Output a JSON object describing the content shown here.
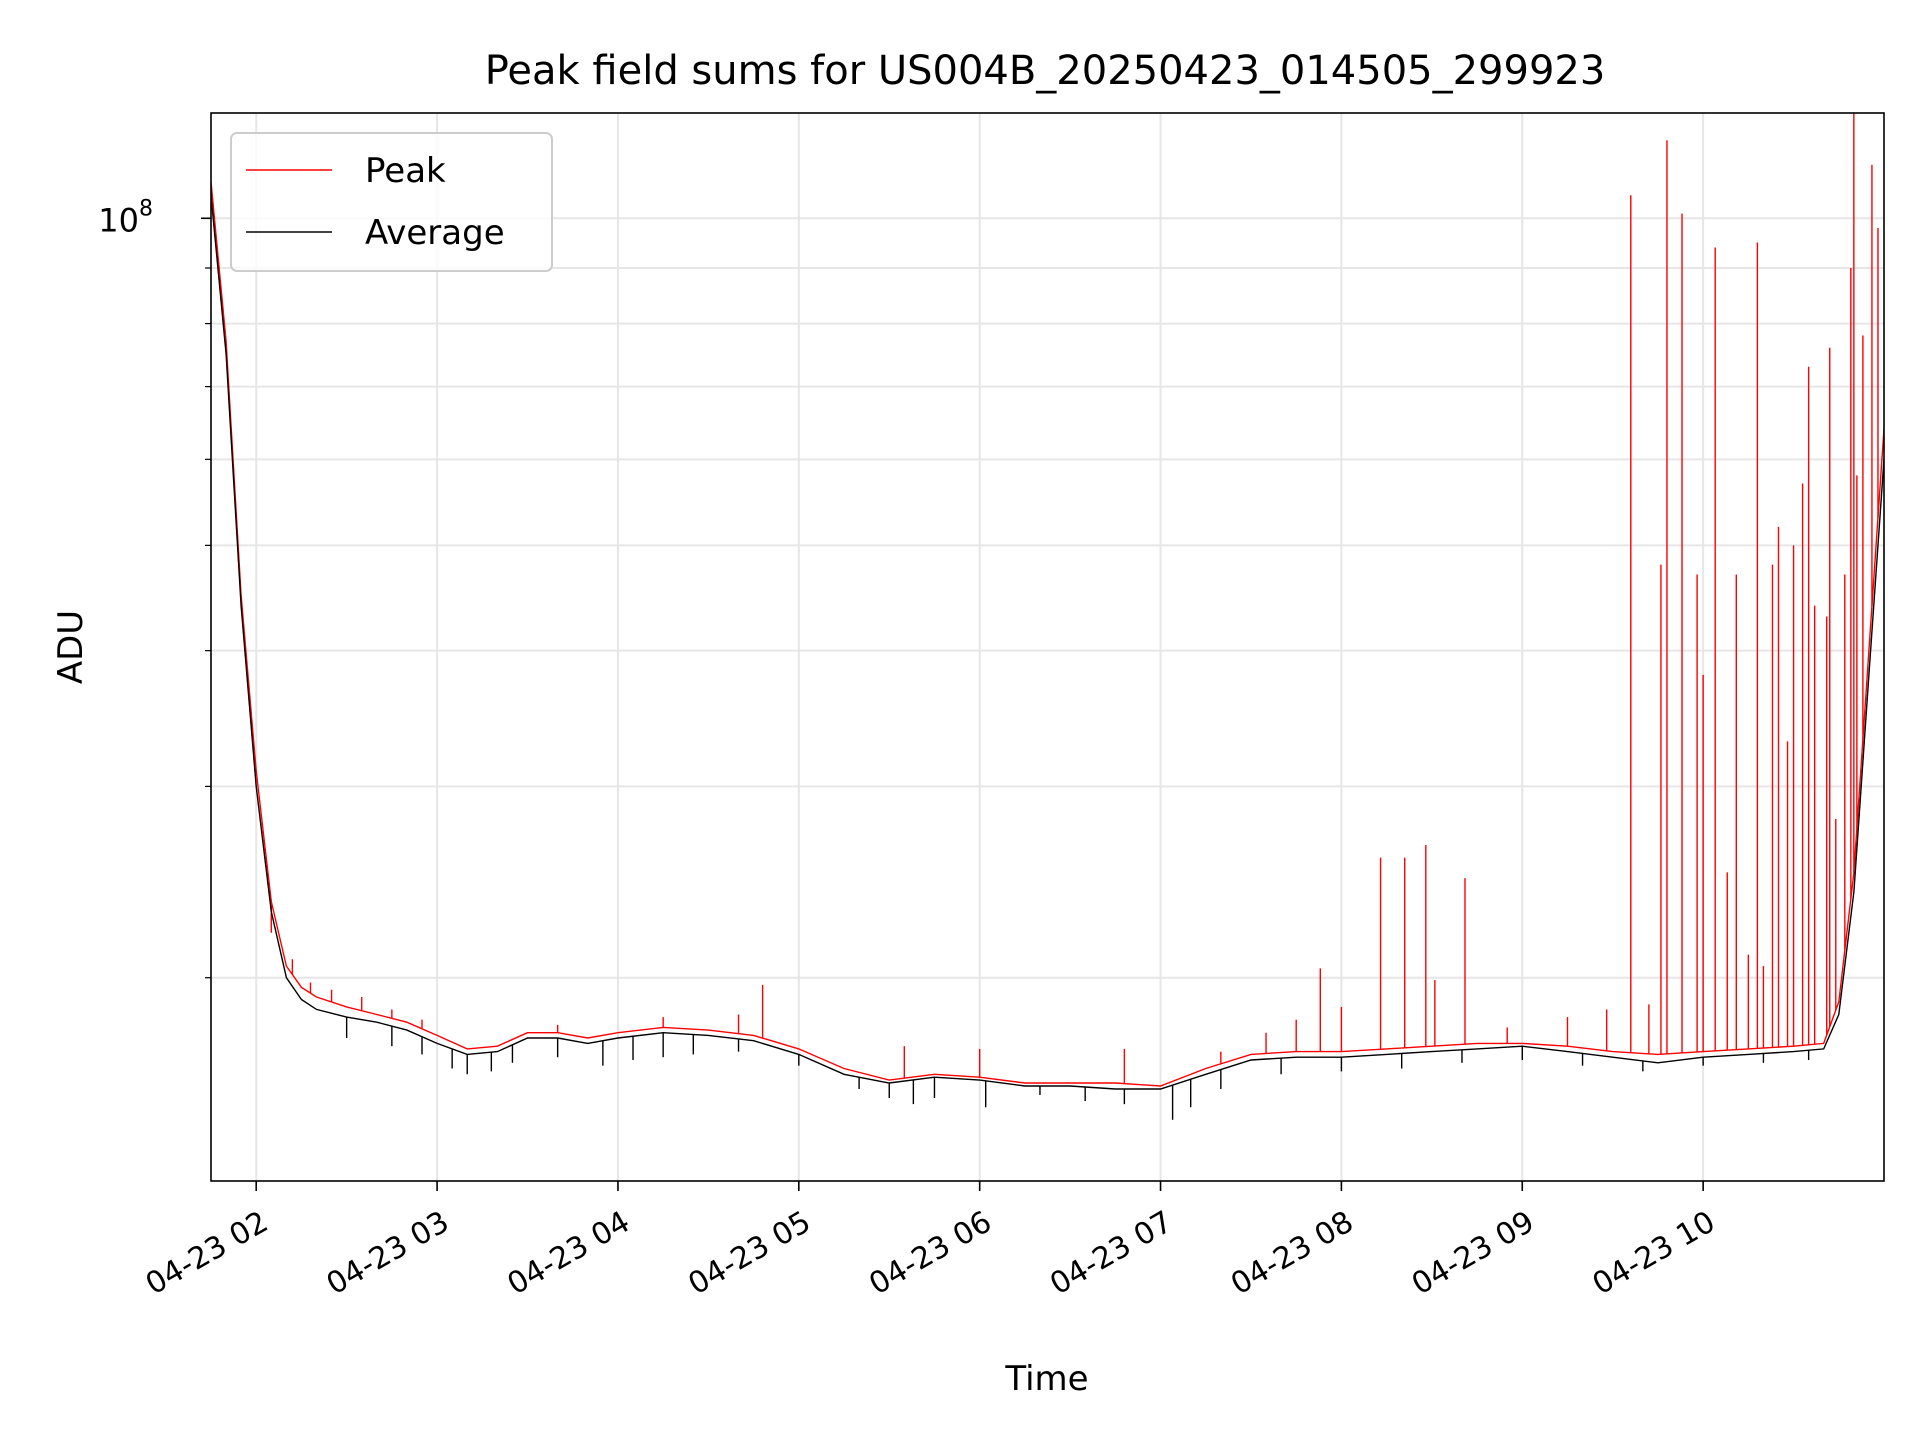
{
  "chart_data": {
    "type": "line",
    "title": "Peak field sums for US004B_20250423_014505_299923",
    "xlabel": "Time",
    "ylabel": "ADU",
    "y_scale": "log",
    "ylim": [
      13000000,
      125000000
    ],
    "x_domain": [
      "04-23 01:45",
      "04-23 11:00"
    ],
    "x_ticks": [
      "04-23 02",
      "04-23 03",
      "04-23 04",
      "04-23 05",
      "04-23 06",
      "04-23 07",
      "04-23 08",
      "04-23 09",
      "04-23 10"
    ],
    "y_major_ticks": [
      {
        "value": 100000000,
        "base": "10",
        "exp": "8"
      }
    ],
    "y_minor_ticks": [
      20000000,
      30000000,
      40000000,
      50000000,
      60000000,
      70000000,
      80000000,
      90000000
    ],
    "grid": true,
    "legend": "upper-left",
    "colors": {
      "peak": "#ff0000",
      "average": "#000000"
    },
    "series": [
      {
        "name": "Average",
        "x": [
          "04-23 01:45",
          "04-23 01:50",
          "04-23 01:55",
          "04-23 02:00",
          "04-23 02:05",
          "04-23 02:10",
          "04-23 02:15",
          "04-23 02:20",
          "04-23 02:30",
          "04-23 02:40",
          "04-23 02:50",
          "04-23 03:00",
          "04-23 03:10",
          "04-23 03:20",
          "04-23 03:30",
          "04-23 03:40",
          "04-23 03:50",
          "04-23 04:00",
          "04-23 04:15",
          "04-23 04:30",
          "04-23 04:45",
          "04-23 05:00",
          "04-23 05:15",
          "04-23 05:30",
          "04-23 05:45",
          "04-23 06:00",
          "04-23 06:15",
          "04-23 06:30",
          "04-23 06:45",
          "04-23 07:00",
          "04-23 07:15",
          "04-23 07:30",
          "04-23 07:45",
          "04-23 08:00",
          "04-23 08:15",
          "04-23 08:30",
          "04-23 08:45",
          "04-23 09:00",
          "04-23 09:15",
          "04-23 09:30",
          "04-23 09:45",
          "04-23 10:00",
          "04-23 10:15",
          "04-23 10:30",
          "04-23 10:40",
          "04-23 10:45",
          "04-23 10:50",
          "04-23 10:55",
          "04-23 11:00"
        ],
        "y": [
          105000000,
          75000000,
          44000000,
          30000000,
          23000000,
          20000000,
          19100000,
          18700000,
          18400000,
          18200000,
          17900000,
          17400000,
          17000000,
          17100000,
          17600000,
          17600000,
          17400000,
          17600000,
          17800000,
          17700000,
          17500000,
          17000000,
          16300000,
          16000000,
          16200000,
          16100000,
          15900000,
          15900000,
          15800000,
          15800000,
          16300000,
          16800000,
          16900000,
          16900000,
          17000000,
          17100000,
          17200000,
          17300000,
          17100000,
          16900000,
          16700000,
          16900000,
          17000000,
          17100000,
          17200000,
          18500000,
          24000000,
          38000000,
          60000000
        ]
      },
      {
        "name": "Peak",
        "x": [
          "04-23 01:45",
          "04-23 01:50",
          "04-23 01:55",
          "04-23 02:00",
          "04-23 02:05",
          "04-23 02:10",
          "04-23 02:15",
          "04-23 02:20",
          "04-23 02:30",
          "04-23 02:40",
          "04-23 02:50",
          "04-23 03:00",
          "04-23 03:10",
          "04-23 03:20",
          "04-23 03:30",
          "04-23 03:40",
          "04-23 03:50",
          "04-23 04:00",
          "04-23 04:15",
          "04-23 04:30",
          "04-23 04:45",
          "04-23 05:00",
          "04-23 05:15",
          "04-23 05:30",
          "04-23 05:45",
          "04-23 06:00",
          "04-23 06:15",
          "04-23 06:30",
          "04-23 06:45",
          "04-23 07:00",
          "04-23 07:15",
          "04-23 07:30",
          "04-23 07:45",
          "04-23 08:00",
          "04-23 08:15",
          "04-23 08:30",
          "04-23 08:45",
          "04-23 09:00",
          "04-23 09:15",
          "04-23 09:30",
          "04-23 09:45",
          "04-23 10:00",
          "04-23 10:15",
          "04-23 10:30",
          "04-23 10:40",
          "04-23 10:45",
          "04-23 10:50",
          "04-23 10:55",
          "04-23 11:00"
        ],
        "y": [
          108000000,
          77000000,
          45000000,
          31000000,
          23500000,
          20500000,
          19600000,
          19200000,
          18800000,
          18500000,
          18200000,
          17700000,
          17200000,
          17300000,
          17800000,
          17800000,
          17600000,
          17800000,
          18000000,
          17900000,
          17700000,
          17200000,
          16500000,
          16100000,
          16300000,
          16200000,
          16000000,
          16000000,
          16000000,
          15900000,
          16500000,
          17000000,
          17100000,
          17100000,
          17200000,
          17300000,
          17400000,
          17400000,
          17300000,
          17100000,
          17000000,
          17100000,
          17200000,
          17300000,
          17400000,
          19000000,
          25000000,
          40000000,
          64000000
        ]
      }
    ],
    "peak_spikes": [
      {
        "x": "04-23 02:05",
        "y": 22000000
      },
      {
        "x": "04-23 02:12",
        "y": 20800000
      },
      {
        "x": "04-23 02:18",
        "y": 19800000
      },
      {
        "x": "04-23 02:25",
        "y": 19500000
      },
      {
        "x": "04-23 02:35",
        "y": 19200000
      },
      {
        "x": "04-23 02:45",
        "y": 18700000
      },
      {
        "x": "04-23 02:55",
        "y": 18300000
      },
      {
        "x": "04-23 03:40",
        "y": 18100000
      },
      {
        "x": "04-23 04:15",
        "y": 18400000
      },
      {
        "x": "04-23 04:40",
        "y": 18500000
      },
      {
        "x": "04-23 04:48",
        "y": 19700000
      },
      {
        "x": "04-23 05:35",
        "y": 17300000
      },
      {
        "x": "04-23 06:00",
        "y": 17200000
      },
      {
        "x": "04-23 06:48",
        "y": 17200000
      },
      {
        "x": "04-23 07:20",
        "y": 17100000
      },
      {
        "x": "04-23 07:35",
        "y": 17800000
      },
      {
        "x": "04-23 07:45",
        "y": 18300000
      },
      {
        "x": "04-23 07:53",
        "y": 20400000
      },
      {
        "x": "04-23 08:00",
        "y": 18800000
      },
      {
        "x": "04-23 08:13",
        "y": 25800000
      },
      {
        "x": "04-23 08:21",
        "y": 25800000
      },
      {
        "x": "04-23 08:28",
        "y": 26500000
      },
      {
        "x": "04-23 08:31",
        "y": 19900000
      },
      {
        "x": "04-23 08:41",
        "y": 24700000
      },
      {
        "x": "04-23 08:55",
        "y": 18000000
      },
      {
        "x": "04-23 09:15",
        "y": 18400000
      },
      {
        "x": "04-23 09:28",
        "y": 18700000
      },
      {
        "x": "04-23 09:36",
        "y": 105000000
      },
      {
        "x": "04-23 09:42",
        "y": 18900000
      },
      {
        "x": "04-23 09:46",
        "y": 48000000
      },
      {
        "x": "04-23 09:48",
        "y": 118000000
      },
      {
        "x": "04-23 09:53",
        "y": 101000000
      },
      {
        "x": "04-23 09:58",
        "y": 47000000
      },
      {
        "x": "04-23 10:00",
        "y": 38000000
      },
      {
        "x": "04-23 10:04",
        "y": 94000000
      },
      {
        "x": "04-23 10:08",
        "y": 25000000
      },
      {
        "x": "04-23 10:11",
        "y": 47000000
      },
      {
        "x": "04-23 10:15",
        "y": 21000000
      },
      {
        "x": "04-23 10:18",
        "y": 95000000
      },
      {
        "x": "04-23 10:20",
        "y": 20500000
      },
      {
        "x": "04-23 10:23",
        "y": 48000000
      },
      {
        "x": "04-23 10:25",
        "y": 52000000
      },
      {
        "x": "04-23 10:28",
        "y": 33000000
      },
      {
        "x": "04-23 10:30",
        "y": 50000000
      },
      {
        "x": "04-23 10:33",
        "y": 57000000
      },
      {
        "x": "04-23 10:35",
        "y": 73000000
      },
      {
        "x": "04-23 10:37",
        "y": 44000000
      },
      {
        "x": "04-23 10:41",
        "y": 43000000
      },
      {
        "x": "04-23 10:42",
        "y": 76000000
      },
      {
        "x": "04-23 10:44",
        "y": 28000000
      },
      {
        "x": "04-23 10:47",
        "y": 47000000
      },
      {
        "x": "04-23 10:49",
        "y": 90000000
      },
      {
        "x": "04-23 10:50",
        "y": 127000000
      },
      {
        "x": "04-23 10:51",
        "y": 58000000
      },
      {
        "x": "04-23 10:53",
        "y": 78000000
      },
      {
        "x": "04-23 10:56",
        "y": 112000000
      },
      {
        "x": "04-23 10:58",
        "y": 98000000
      }
    ],
    "average_dips": [
      {
        "x": "04-23 02:30",
        "y": 17600000
      },
      {
        "x": "04-23 02:45",
        "y": 17300000
      },
      {
        "x": "04-23 02:55",
        "y": 17000000
      },
      {
        "x": "04-23 03:05",
        "y": 16500000
      },
      {
        "x": "04-23 03:10",
        "y": 16300000
      },
      {
        "x": "04-23 03:18",
        "y": 16400000
      },
      {
        "x": "04-23 03:25",
        "y": 16700000
      },
      {
        "x": "04-23 03:40",
        "y": 16900000
      },
      {
        "x": "04-23 03:55",
        "y": 16600000
      },
      {
        "x": "04-23 04:05",
        "y": 16800000
      },
      {
        "x": "04-23 04:15",
        "y": 16900000
      },
      {
        "x": "04-23 04:25",
        "y": 17000000
      },
      {
        "x": "04-23 04:40",
        "y": 17100000
      },
      {
        "x": "04-23 05:00",
        "y": 16600000
      },
      {
        "x": "04-23 05:20",
        "y": 15800000
      },
      {
        "x": "04-23 05:30",
        "y": 15500000
      },
      {
        "x": "04-23 05:38",
        "y": 15300000
      },
      {
        "x": "04-23 05:45",
        "y": 15500000
      },
      {
        "x": "04-23 06:02",
        "y": 15200000
      },
      {
        "x": "04-23 06:20",
        "y": 15600000
      },
      {
        "x": "04-23 06:35",
        "y": 15400000
      },
      {
        "x": "04-23 06:48",
        "y": 15300000
      },
      {
        "x": "04-23 07:04",
        "y": 14800000
      },
      {
        "x": "04-23 07:10",
        "y": 15200000
      },
      {
        "x": "04-23 07:20",
        "y": 15800000
      },
      {
        "x": "04-23 07:40",
        "y": 16300000
      },
      {
        "x": "04-23 08:00",
        "y": 16400000
      },
      {
        "x": "04-23 08:20",
        "y": 16500000
      },
      {
        "x": "04-23 08:40",
        "y": 16700000
      },
      {
        "x": "04-23 09:00",
        "y": 16800000
      },
      {
        "x": "04-23 09:20",
        "y": 16600000
      },
      {
        "x": "04-23 09:40",
        "y": 16400000
      },
      {
        "x": "04-23 10:00",
        "y": 16600000
      },
      {
        "x": "04-23 10:20",
        "y": 16700000
      },
      {
        "x": "04-23 10:35",
        "y": 16800000
      }
    ]
  }
}
